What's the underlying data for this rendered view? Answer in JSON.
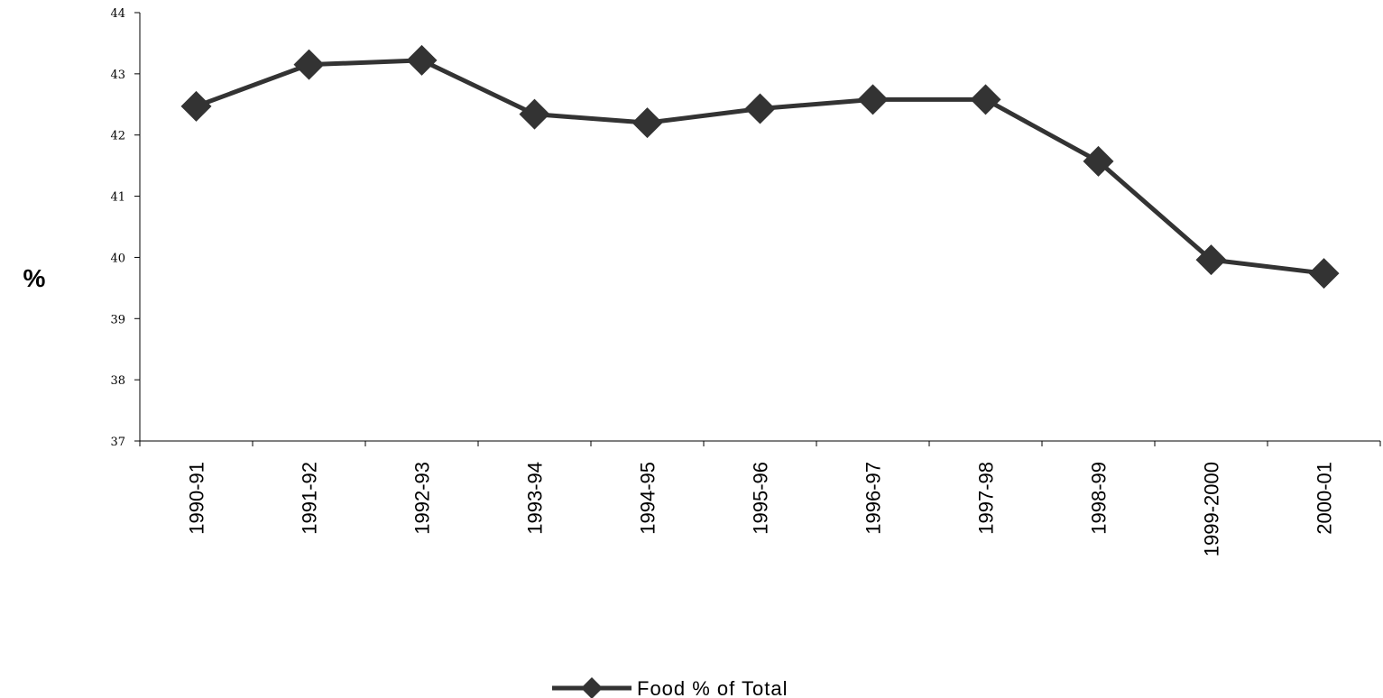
{
  "chart_data": {
    "type": "line",
    "categories": [
      "1990-91",
      "1991-92",
      "1992-93",
      "1993-94",
      "1994-95",
      "1995-96",
      "1996-97",
      "1997-98",
      "1998-99",
      "1999-2000",
      "2000-01"
    ],
    "series": [
      {
        "name": "Food % of Total",
        "values": [
          42.47,
          43.15,
          43.22,
          42.34,
          42.2,
          42.43,
          42.58,
          42.58,
          41.57,
          39.96,
          39.74
        ],
        "color": "#333333",
        "marker": "diamond"
      }
    ],
    "title": "",
    "xlabel": "",
    "ylabel": "%",
    "ylim": [
      37,
      44
    ],
    "yticks": [
      "37",
      "38",
      "39",
      "40",
      "41",
      "42",
      "43",
      "44"
    ],
    "grid": false,
    "legend_position": "bottom-center"
  }
}
